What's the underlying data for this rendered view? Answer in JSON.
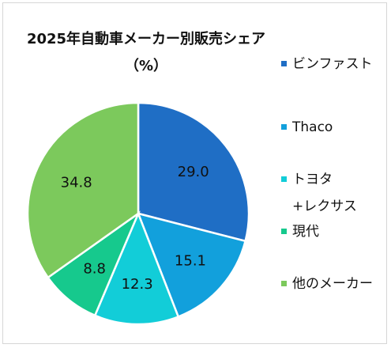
{
  "chart_data": {
    "type": "pie",
    "title_line1": "2025年自動車メーカー別販売シェア",
    "title_line2": "（%）",
    "slices": [
      {
        "label": "ビンファスト",
        "value": 29.0,
        "display": "29.0",
        "color": "#1f6ec5"
      },
      {
        "label": "Thaco",
        "value": 15.1,
        "display": "15.1",
        "color": "#12a0dc"
      },
      {
        "label": "トヨタ\n+レクサス",
        "value": 12.3,
        "display": "12.3",
        "color": "#12cdd8"
      },
      {
        "label": "現代",
        "value": 8.8,
        "display": "8.8",
        "color": "#16c98d"
      },
      {
        "label": "他のメーカー",
        "value": 34.8,
        "display": "34.8",
        "color": "#7cc95c"
      }
    ],
    "legend_position": "right"
  }
}
